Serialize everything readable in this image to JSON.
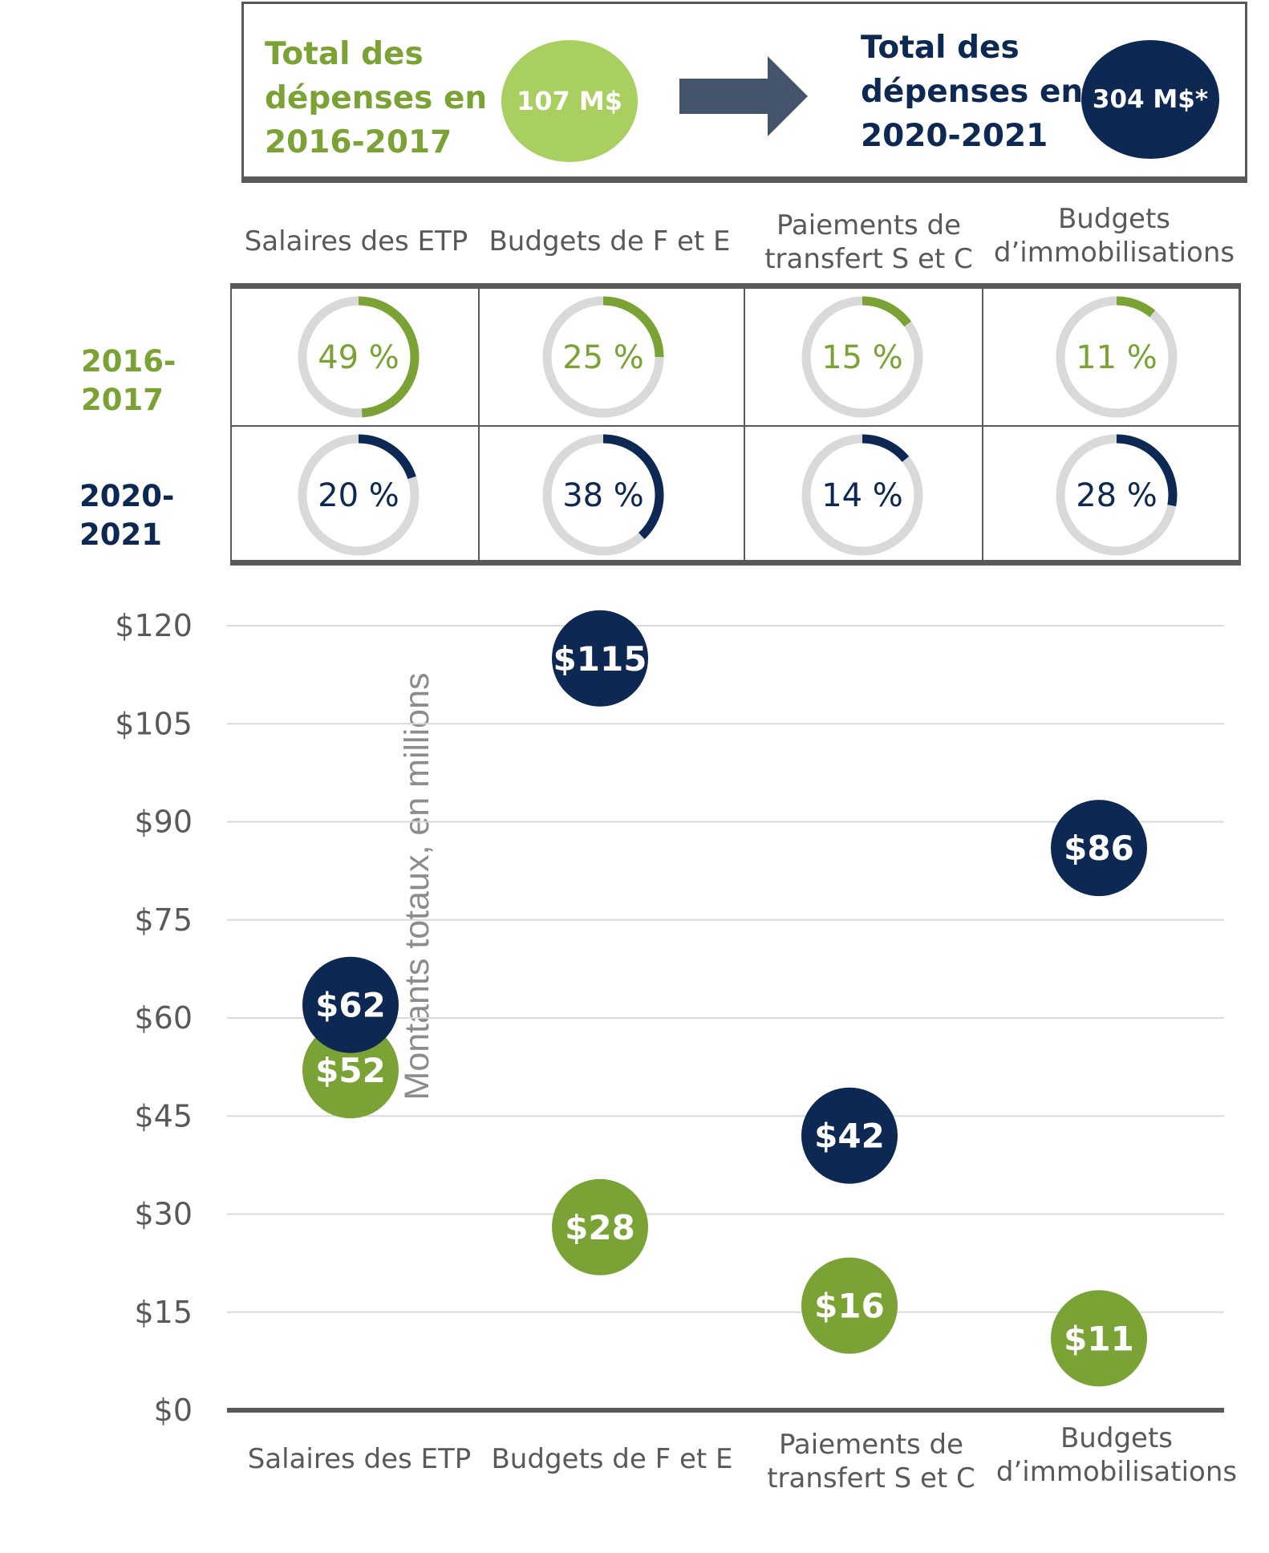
{
  "summary": {
    "old_label_lines": [
      "Total des",
      "dépenses en",
      "2016-2017"
    ],
    "old_value": "107 M$",
    "new_label_lines": [
      "Total des",
      "dépenses en",
      "2020-2021"
    ],
    "new_value": "304 M$*"
  },
  "categories": [
    "Salaires des ETP",
    "Budgets de F et E",
    "Paiements de transfert S et C",
    "Budgets d’immobilisations"
  ],
  "category_header_lines": [
    [
      "Salaires des ETP"
    ],
    [
      "Budgets de F et E"
    ],
    [
      "Paiements de",
      "transfert S et C"
    ],
    [
      "Budgets",
      "d’immobilisations"
    ]
  ],
  "rows": [
    {
      "year_lines": [
        "2016-",
        "2017"
      ],
      "shares": [
        49,
        25,
        15,
        11
      ],
      "labels": [
        "49 %",
        "25 %",
        "15 %",
        "11 %"
      ]
    },
    {
      "year_lines": [
        "2020-",
        "2021"
      ],
      "shares": [
        20,
        38,
        14,
        28
      ],
      "labels": [
        "20 %",
        "38 %",
        "14 %",
        "28 %"
      ]
    }
  ],
  "colors": {
    "green": "#7aa234",
    "light_green": "#a8cf5f",
    "navy": "#0c2853",
    "ring": "#d9d9d9",
    "grid": "#d9d9d9",
    "axis": "#595959",
    "text": "#595959",
    "axis_title": "#8c8c8c"
  },
  "chart_data": {
    "type": "scatter",
    "ylabel": "Montants totaux, en millions",
    "ylim": [
      0,
      120
    ],
    "yticks": [
      0,
      15,
      30,
      45,
      60,
      75,
      90,
      105,
      120
    ],
    "ytick_labels": [
      "$0",
      "$15",
      "$30",
      "$45",
      "$60",
      "$75",
      "$90",
      "$105",
      "$120"
    ],
    "grid": true,
    "categories": [
      "Salaires des ETP",
      "Budgets de F et E",
      "Paiements de transfert S et C",
      "Budgets d’immobilisations"
    ],
    "series": [
      {
        "values": [
          52,
          28,
          16,
          11
        ],
        "labels": [
          "$52",
          "$28",
          "$16",
          "$11"
        ],
        "color": "#7aa234"
      },
      {
        "values": [
          62,
          115,
          42,
          86
        ],
        "labels": [
          "$62",
          "$115",
          "$42",
          "$86"
        ],
        "color": "#0c2853"
      }
    ]
  }
}
